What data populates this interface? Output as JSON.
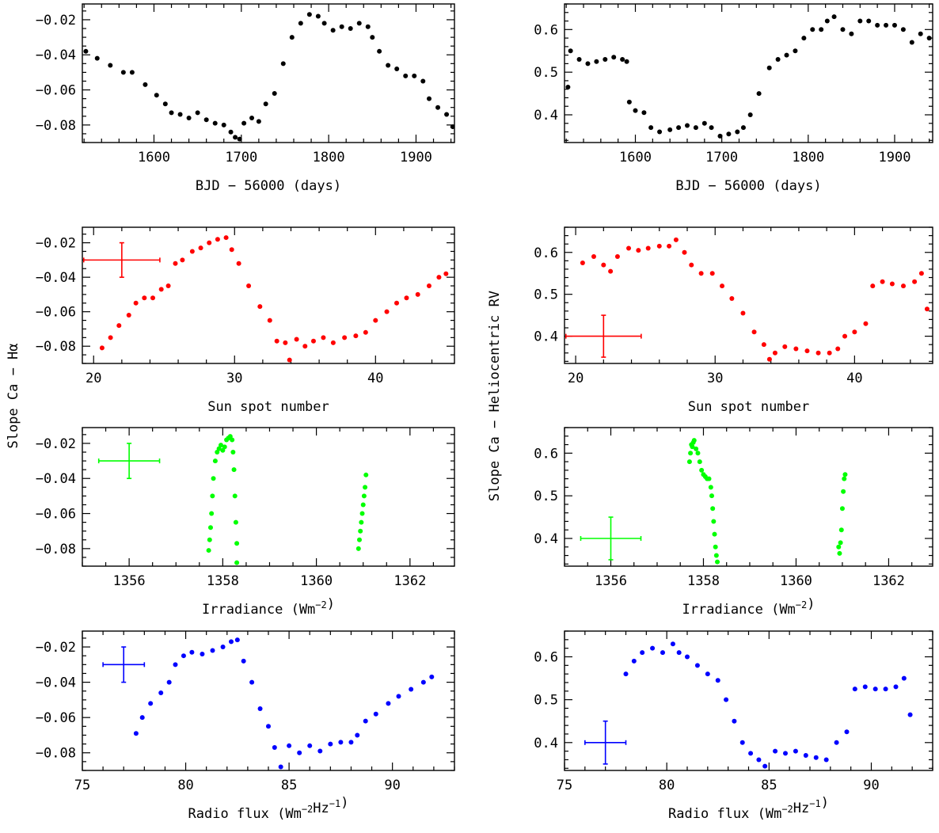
{
  "figure": {
    "ylabel_left": "Slope Ca − Hα",
    "ylabel_right": "Slope Ca − Heliocentric RV"
  },
  "colors": {
    "time": "#000000",
    "sunspot": "#ff0000",
    "irradiance": "#00ff00",
    "radio": "#0000ff"
  },
  "chart_data": [
    {
      "id": "time-slope",
      "type": "scatter",
      "color": "#000000",
      "xlabel": "BJD − 56000 (days)",
      "xlim": [
        1518,
        1944
      ],
      "ylim": [
        -0.09,
        -0.011
      ],
      "xticks": [
        1600,
        1700,
        1800,
        1900
      ],
      "xminor": 20,
      "yticks": [
        -0.08,
        -0.06,
        -0.04,
        -0.02
      ],
      "yminor": 0.005,
      "ytick_labels": [
        "−0.08",
        "−0.06",
        "−0.04",
        "−0.02"
      ],
      "x": [
        1522,
        1535,
        1550,
        1565,
        1575,
        1590,
        1603,
        1613,
        1620,
        1630,
        1640,
        1650,
        1660,
        1670,
        1680,
        1688,
        1693,
        1698,
        1703,
        1712,
        1720,
        1728,
        1738,
        1748,
        1758,
        1768,
        1778,
        1788,
        1795,
        1805,
        1815,
        1825,
        1835,
        1845,
        1850,
        1858,
        1868,
        1878,
        1888,
        1898,
        1908,
        1915,
        1925,
        1935,
        1942
      ],
      "y": [
        -0.038,
        -0.042,
        -0.046,
        -0.05,
        -0.05,
        -0.057,
        -0.063,
        -0.068,
        -0.073,
        -0.074,
        -0.076,
        -0.073,
        -0.077,
        -0.079,
        -0.08,
        -0.084,
        -0.087,
        -0.088,
        -0.079,
        -0.076,
        -0.078,
        -0.068,
        -0.062,
        -0.045,
        -0.03,
        -0.022,
        -0.017,
        -0.018,
        -0.022,
        -0.026,
        -0.024,
        -0.025,
        -0.022,
        -0.024,
        -0.03,
        -0.038,
        -0.046,
        -0.048,
        -0.052,
        -0.052,
        -0.055,
        -0.065,
        -0.07,
        -0.074,
        -0.081
      ],
      "errorbar": null
    },
    {
      "id": "time-rv",
      "type": "scatter",
      "color": "#000000",
      "xlabel": "BJD − 56000 (days)",
      "xlim": [
        1518,
        1944
      ],
      "ylim": [
        0.335,
        0.66
      ],
      "xticks": [
        1600,
        1700,
        1800,
        1900
      ],
      "xminor": 20,
      "yticks": [
        0.4,
        0.5,
        0.6
      ],
      "yminor": 0.02,
      "ytick_labels": [
        "0.4",
        "0.5",
        "0.6"
      ],
      "x": [
        1522,
        1525,
        1535,
        1545,
        1555,
        1565,
        1575,
        1585,
        1590,
        1593,
        1600,
        1610,
        1618,
        1628,
        1640,
        1650,
        1660,
        1670,
        1680,
        1688,
        1698,
        1708,
        1718,
        1725,
        1733,
        1743,
        1755,
        1765,
        1775,
        1785,
        1795,
        1805,
        1815,
        1822,
        1830,
        1840,
        1850,
        1860,
        1870,
        1880,
        1890,
        1900,
        1910,
        1920,
        1930,
        1940
      ],
      "y": [
        0.465,
        0.55,
        0.53,
        0.52,
        0.525,
        0.53,
        0.535,
        0.53,
        0.525,
        0.43,
        0.41,
        0.405,
        0.37,
        0.36,
        0.365,
        0.37,
        0.375,
        0.37,
        0.38,
        0.37,
        0.35,
        0.355,
        0.36,
        0.37,
        0.4,
        0.45,
        0.51,
        0.53,
        0.54,
        0.55,
        0.58,
        0.6,
        0.6,
        0.62,
        0.63,
        0.6,
        0.59,
        0.62,
        0.62,
        0.61,
        0.61,
        0.61,
        0.6,
        0.57,
        0.59,
        0.58
      ],
      "errorbar": null
    },
    {
      "id": "sunspot-slope",
      "type": "scatter",
      "color": "#ff0000",
      "xlabel": "Sun spot number",
      "xlim": [
        19.2,
        45.6
      ],
      "ylim": [
        -0.09,
        -0.011
      ],
      "xticks": [
        20,
        30,
        40
      ],
      "xminor": 2,
      "yticks": [
        -0.08,
        -0.06,
        -0.04,
        -0.02
      ],
      "yminor": 0.005,
      "ytick_labels": [
        "−0.08",
        "−0.06",
        "−0.04",
        "−0.02"
      ],
      "x": [
        20.6,
        21.2,
        21.8,
        22.5,
        23.0,
        23.6,
        24.2,
        24.8,
        25.3,
        25.8,
        26.3,
        27.0,
        27.6,
        28.2,
        28.8,
        29.4,
        29.8,
        30.3,
        31.0,
        31.8,
        32.5,
        33.0,
        33.6,
        33.9,
        34.4,
        35.0,
        35.6,
        36.3,
        37.0,
        37.8,
        38.6,
        39.3,
        40.0,
        40.8,
        41.5,
        42.2,
        43.0,
        43.8,
        44.5,
        45.0
      ],
      "y": [
        -0.081,
        -0.075,
        -0.068,
        -0.062,
        -0.055,
        -0.052,
        -0.052,
        -0.047,
        -0.045,
        -0.032,
        -0.03,
        -0.025,
        -0.023,
        -0.02,
        -0.018,
        -0.017,
        -0.024,
        -0.032,
        -0.045,
        -0.057,
        -0.065,
        -0.077,
        -0.078,
        -0.088,
        -0.076,
        -0.08,
        -0.077,
        -0.075,
        -0.078,
        -0.075,
        -0.074,
        -0.072,
        -0.065,
        -0.06,
        -0.055,
        -0.052,
        -0.05,
        -0.045,
        -0.04,
        -0.038
      ],
      "errorbar": {
        "x": 22.0,
        "y": -0.03,
        "dx": 2.7,
        "dy": 0.01
      }
    },
    {
      "id": "sunspot-rv",
      "type": "scatter",
      "color": "#ff0000",
      "xlabel": "Sun spot number",
      "xlim": [
        19.2,
        45.6
      ],
      "ylim": [
        0.335,
        0.66
      ],
      "xticks": [
        20,
        30,
        40
      ],
      "xminor": 2,
      "yticks": [
        0.4,
        0.5,
        0.6
      ],
      "yminor": 0.02,
      "ytick_labels": [
        "0.4",
        "0.5",
        "0.6"
      ],
      "x": [
        20.5,
        21.3,
        22.0,
        22.5,
        23.0,
        23.8,
        24.5,
        25.2,
        26.0,
        26.7,
        27.2,
        27.8,
        28.3,
        29.0,
        29.8,
        30.5,
        31.2,
        32.0,
        32.8,
        33.5,
        33.9,
        34.3,
        35.0,
        35.8,
        36.6,
        37.4,
        38.2,
        38.8,
        39.3,
        40.0,
        40.8,
        41.3,
        42.0,
        42.7,
        43.5,
        44.3,
        44.8,
        45.2
      ],
      "y": [
        0.575,
        0.59,
        0.57,
        0.555,
        0.59,
        0.61,
        0.605,
        0.61,
        0.615,
        0.615,
        0.63,
        0.6,
        0.57,
        0.55,
        0.55,
        0.52,
        0.49,
        0.455,
        0.41,
        0.38,
        0.345,
        0.36,
        0.375,
        0.37,
        0.365,
        0.36,
        0.36,
        0.37,
        0.4,
        0.41,
        0.43,
        0.52,
        0.53,
        0.525,
        0.52,
        0.53,
        0.55,
        0.465
      ],
      "errorbar": {
        "x": 22.0,
        "y": 0.4,
        "dx": 2.7,
        "dy": 0.05
      }
    },
    {
      "id": "irradiance-slope",
      "type": "scatter",
      "color": "#00ff00",
      "xlabel": "Irradiance  (Wm⁻²)",
      "xlim": [
        1355.0,
        1362.95
      ],
      "ylim": [
        -0.09,
        -0.011
      ],
      "xticks": [
        1356,
        1358,
        1360,
        1362
      ],
      "xminor": 0.5,
      "yticks": [
        -0.08,
        -0.06,
        -0.04,
        -0.02
      ],
      "yminor": 0.005,
      "ytick_labels": [
        "−0.08",
        "−0.06",
        "−0.04",
        "−0.02"
      ],
      "x": [
        1357.7,
        1357.72,
        1357.74,
        1357.76,
        1357.78,
        1357.8,
        1357.84,
        1357.88,
        1357.92,
        1357.96,
        1358.0,
        1358.04,
        1358.08,
        1358.12,
        1358.16,
        1358.2,
        1358.22,
        1358.24,
        1358.26,
        1358.28,
        1358.3,
        1358.3,
        1360.9,
        1360.92,
        1360.94,
        1360.96,
        1360.98,
        1361.0,
        1361.02,
        1361.04,
        1361.06
      ],
      "y": [
        -0.081,
        -0.075,
        -0.068,
        -0.06,
        -0.05,
        -0.04,
        -0.03,
        -0.025,
        -0.023,
        -0.021,
        -0.024,
        -0.022,
        -0.018,
        -0.017,
        -0.016,
        -0.018,
        -0.025,
        -0.035,
        -0.05,
        -0.065,
        -0.077,
        -0.088,
        -0.08,
        -0.075,
        -0.07,
        -0.065,
        -0.06,
        -0.055,
        -0.05,
        -0.045,
        -0.038
      ],
      "errorbar": {
        "x": 1356.0,
        "y": -0.03,
        "dx": 0.65,
        "dy": 0.01
      }
    },
    {
      "id": "irradiance-rv",
      "type": "scatter",
      "color": "#00ff00",
      "xlabel": "Irradiance  (Wm⁻²)",
      "xlim": [
        1355.0,
        1362.95
      ],
      "ylim": [
        0.335,
        0.66
      ],
      "xticks": [
        1356,
        1358,
        1360,
        1362
      ],
      "xminor": 0.5,
      "yticks": [
        0.4,
        0.5,
        0.6
      ],
      "yminor": 0.02,
      "ytick_labels": [
        "0.4",
        "0.5",
        "0.6"
      ],
      "x": [
        1357.7,
        1357.72,
        1357.74,
        1357.76,
        1357.78,
        1357.8,
        1357.84,
        1357.88,
        1357.92,
        1357.96,
        1358.0,
        1358.04,
        1358.08,
        1358.12,
        1358.16,
        1358.18,
        1358.2,
        1358.22,
        1358.24,
        1358.26,
        1358.28,
        1358.3,
        1360.92,
        1360.94,
        1360.96,
        1360.98,
        1361.0,
        1361.02,
        1361.04,
        1361.06
      ],
      "y": [
        0.58,
        0.6,
        0.62,
        0.615,
        0.625,
        0.63,
        0.61,
        0.6,
        0.58,
        0.56,
        0.55,
        0.545,
        0.54,
        0.54,
        0.52,
        0.5,
        0.47,
        0.44,
        0.41,
        0.38,
        0.36,
        0.345,
        0.38,
        0.365,
        0.39,
        0.42,
        0.47,
        0.51,
        0.54,
        0.55
      ],
      "errorbar": {
        "x": 1356.0,
        "y": 0.4,
        "dx": 0.65,
        "dy": 0.05
      }
    },
    {
      "id": "radio-slope",
      "type": "scatter",
      "color": "#0000ff",
      "xlabel": "Radio flux  (Wm⁻²Hz⁻¹)",
      "xlim": [
        75.0,
        93.0
      ],
      "ylim": [
        -0.09,
        -0.011
      ],
      "xticks": [
        75,
        80,
        85,
        90
      ],
      "xminor": 1,
      "yticks": [
        -0.08,
        -0.06,
        -0.04,
        -0.02
      ],
      "yminor": 0.005,
      "ytick_labels": [
        "−0.08",
        "−0.06",
        "−0.04",
        "−0.02"
      ],
      "x": [
        77.6,
        77.9,
        78.3,
        78.8,
        79.2,
        79.5,
        79.9,
        80.3,
        80.8,
        81.3,
        81.8,
        82.2,
        82.5,
        82.8,
        83.2,
        83.6,
        84.0,
        84.3,
        84.6,
        85.0,
        85.5,
        86.0,
        86.5,
        87.0,
        87.5,
        88.0,
        88.3,
        88.7,
        89.2,
        89.8,
        90.3,
        90.9,
        91.5,
        91.9
      ],
      "y": [
        -0.069,
        -0.06,
        -0.052,
        -0.046,
        -0.04,
        -0.03,
        -0.025,
        -0.023,
        -0.024,
        -0.022,
        -0.02,
        -0.017,
        -0.016,
        -0.028,
        -0.04,
        -0.055,
        -0.065,
        -0.077,
        -0.088,
        -0.076,
        -0.08,
        -0.076,
        -0.079,
        -0.075,
        -0.074,
        -0.074,
        -0.07,
        -0.062,
        -0.058,
        -0.052,
        -0.048,
        -0.044,
        -0.04,
        -0.037
      ],
      "errorbar": {
        "x": 77.0,
        "y": -0.03,
        "dx": 1.0,
        "dy": 0.01
      }
    },
    {
      "id": "radio-rv",
      "type": "scatter",
      "color": "#0000ff",
      "xlabel": "Radio flux  (Wm⁻²Hz⁻¹)",
      "xlim": [
        75.0,
        93.0
      ],
      "ylim": [
        0.335,
        0.66
      ],
      "xticks": [
        75,
        80,
        85,
        90
      ],
      "xminor": 1,
      "yticks": [
        0.4,
        0.5,
        0.6
      ],
      "yminor": 0.02,
      "ytick_labels": [
        "0.4",
        "0.5",
        "0.6"
      ],
      "x": [
        78.0,
        78.4,
        78.8,
        79.3,
        79.8,
        80.3,
        80.6,
        81.0,
        81.5,
        82.0,
        82.5,
        82.9,
        83.3,
        83.7,
        84.1,
        84.5,
        84.8,
        85.3,
        85.8,
        86.3,
        86.8,
        87.3,
        87.8,
        88.3,
        88.8,
        89.2,
        89.7,
        90.2,
        90.7,
        91.2,
        91.6,
        91.9
      ],
      "y": [
        0.56,
        0.59,
        0.61,
        0.62,
        0.61,
        0.63,
        0.61,
        0.6,
        0.58,
        0.56,
        0.545,
        0.5,
        0.45,
        0.4,
        0.375,
        0.36,
        0.345,
        0.38,
        0.375,
        0.38,
        0.37,
        0.365,
        0.36,
        0.4,
        0.425,
        0.525,
        0.53,
        0.525,
        0.525,
        0.53,
        0.55,
        0.465
      ],
      "errorbar": {
        "x": 77.0,
        "y": 0.4,
        "dx": 1.0,
        "dy": 0.05
      }
    }
  ]
}
